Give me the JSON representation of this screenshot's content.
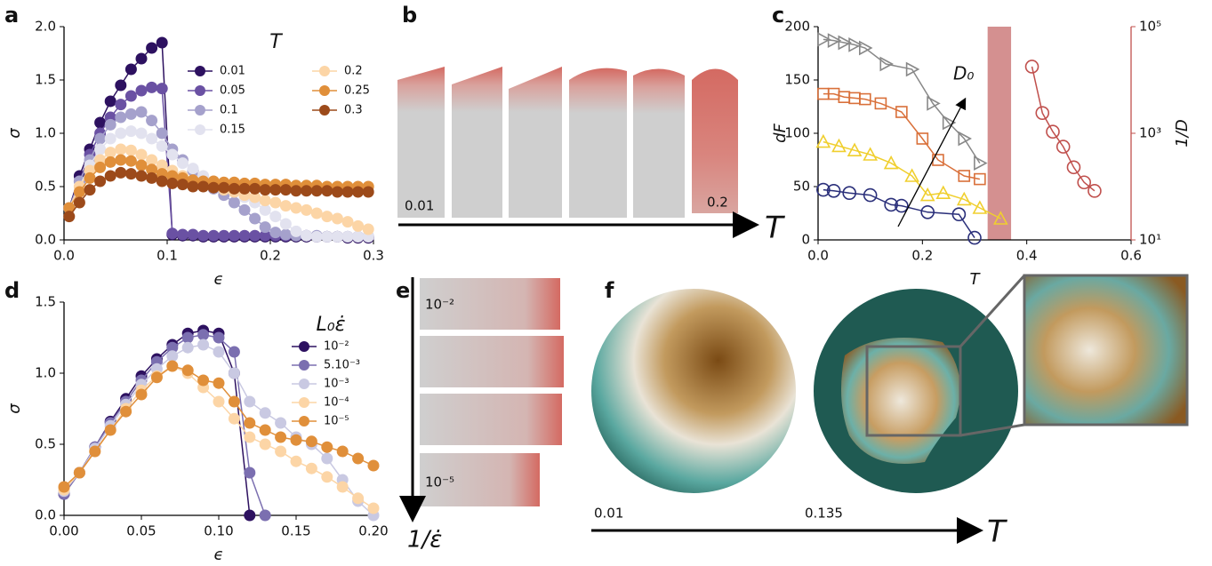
{
  "chart_data": [
    {
      "type": "line",
      "panel_label": "a",
      "xlabel": "ϵ",
      "ylabel": "σ",
      "legend_title": "T",
      "xlim": [
        0,
        0.3
      ],
      "ylim": [
        0,
        2
      ],
      "xticks": [
        {
          "value": 0,
          "label": "0.0"
        },
        {
          "value": 0.1,
          "label": "0.1"
        },
        {
          "value": 0.2,
          "label": "0.2"
        },
        {
          "value": 0.3,
          "label": "0.3"
        }
      ],
      "yticks": [
        {
          "value": 0,
          "label": "0.0"
        },
        {
          "value": 0.5,
          "label": "0.5"
        },
        {
          "value": 1,
          "label": "1.0"
        },
        {
          "value": 1.5,
          "label": "1.5"
        },
        {
          "value": 2,
          "label": "2.0"
        }
      ],
      "x": [
        0.005,
        0.015,
        0.025,
        0.035,
        0.045,
        0.055,
        0.065,
        0.075,
        0.085,
        0.095,
        0.105,
        0.115,
        0.125,
        0.135,
        0.145,
        0.155,
        0.165,
        0.175,
        0.185,
        0.195,
        0.205,
        0.215,
        0.225,
        0.235,
        0.245,
        0.255,
        0.265,
        0.275,
        0.285,
        0.295
      ],
      "series": [
        {
          "name": "0.01",
          "color": "#2d1160",
          "values": [
            0.3,
            0.6,
            0.85,
            1.1,
            1.3,
            1.45,
            1.6,
            1.7,
            1.8,
            1.85,
            0.05,
            0.04,
            0.04,
            0.03,
            0.03,
            0.03,
            0.03,
            0.03,
            0.03,
            0.03,
            0.03,
            0.03,
            0.03,
            0.03,
            0.03,
            0.03,
            0.03,
            0.02,
            0.02,
            0.02
          ]
        },
        {
          "name": "0.05",
          "color": "#6a51a3",
          "values": [
            0.3,
            0.55,
            0.8,
            1.0,
            1.15,
            1.27,
            1.35,
            1.4,
            1.43,
            1.42,
            0.06,
            0.05,
            0.05,
            0.04,
            0.04,
            0.04,
            0.04,
            0.04,
            0.04,
            0.04,
            0.04,
            0.04,
            0.04,
            0.04,
            0.03,
            0.03,
            0.03,
            0.03,
            0.03,
            0.03
          ]
        },
        {
          "name": "0.1",
          "color": "#a5a1cc",
          "values": [
            0.3,
            0.55,
            0.75,
            0.95,
            1.08,
            1.15,
            1.18,
            1.2,
            1.12,
            1.0,
            0.85,
            0.75,
            0.65,
            0.55,
            0.48,
            0.42,
            0.35,
            0.28,
            0.2,
            0.12,
            0.07,
            0.05,
            0.04,
            0.04,
            0.04,
            0.03,
            0.03,
            0.03,
            0.03,
            0.03
          ]
        },
        {
          "name": "0.15",
          "color": "#e2e2ef",
          "values": [
            0.3,
            0.5,
            0.7,
            0.85,
            0.95,
            1.0,
            1.02,
            1.0,
            0.95,
            0.88,
            0.8,
            0.72,
            0.67,
            0.6,
            0.55,
            0.5,
            0.45,
            0.4,
            0.35,
            0.28,
            0.22,
            0.15,
            0.08,
            0.04,
            0.03,
            0.03,
            0.03,
            0.03,
            0.03,
            0.03
          ]
        },
        {
          "name": "0.2",
          "color": "#fcd5a6",
          "values": [
            0.3,
            0.5,
            0.65,
            0.75,
            0.82,
            0.85,
            0.84,
            0.8,
            0.75,
            0.7,
            0.65,
            0.6,
            0.55,
            0.52,
            0.5,
            0.47,
            0.45,
            0.42,
            0.4,
            0.37,
            0.35,
            0.32,
            0.3,
            0.28,
            0.25,
            0.22,
            0.2,
            0.17,
            0.13,
            0.1
          ]
        },
        {
          "name": "0.25",
          "color": "#e08f3a",
          "values": [
            0.3,
            0.45,
            0.58,
            0.68,
            0.73,
            0.75,
            0.74,
            0.7,
            0.66,
            0.62,
            0.6,
            0.58,
            0.56,
            0.55,
            0.55,
            0.54,
            0.54,
            0.53,
            0.53,
            0.52,
            0.52,
            0.52,
            0.51,
            0.51,
            0.51,
            0.5,
            0.5,
            0.5,
            0.5,
            0.5
          ]
        },
        {
          "name": "0.3",
          "color": "#9c4a1a",
          "values": [
            0.22,
            0.35,
            0.47,
            0.55,
            0.6,
            0.63,
            0.62,
            0.6,
            0.58,
            0.55,
            0.53,
            0.52,
            0.5,
            0.5,
            0.49,
            0.49,
            0.48,
            0.48,
            0.48,
            0.47,
            0.47,
            0.47,
            0.46,
            0.46,
            0.46,
            0.46,
            0.45,
            0.45,
            0.45,
            0.45
          ]
        }
      ]
    },
    {
      "type": "line",
      "panel_label": "c",
      "xlabel": "T",
      "ylabel": "dF",
      "y2label": "1/D",
      "annotation": "D₀",
      "hollow": true,
      "y2scale": "log",
      "shaded_region": [
        0.325,
        0.37
      ],
      "shaded_color": "#d49090",
      "xlim": [
        0,
        0.6
      ],
      "ylim": [
        0,
        200
      ],
      "y2lim": [
        10,
        100000
      ],
      "xticks": [
        {
          "value": 0,
          "label": "0.0"
        },
        {
          "value": 0.2,
          "label": "0.2"
        },
        {
          "value": 0.4,
          "label": "0.4"
        },
        {
          "value": 0.6,
          "label": "0.6"
        }
      ],
      "yticks": [
        0,
        50,
        100,
        150,
        200
      ],
      "y2ticks": [
        {
          "value": 10,
          "label": "10¹"
        },
        {
          "value": 1000,
          "label": "10³"
        },
        {
          "value": 100000,
          "label": "10⁵"
        }
      ],
      "series": [
        {
          "marker": "triangle-right",
          "color": "#888888",
          "x": [
            0.01,
            0.03,
            0.05,
            0.07,
            0.09,
            0.13,
            0.18,
            0.22,
            0.25,
            0.28,
            0.31
          ],
          "values": [
            188,
            187,
            185,
            183,
            180,
            165,
            160,
            128,
            110,
            95,
            72
          ]
        },
        {
          "marker": "square",
          "color": "#d9703a",
          "x": [
            0.01,
            0.03,
            0.05,
            0.07,
            0.09,
            0.12,
            0.16,
            0.2,
            0.23,
            0.28,
            0.31
          ],
          "values": [
            137,
            137,
            134,
            133,
            132,
            128,
            120,
            95,
            75,
            60,
            57
          ]
        },
        {
          "marker": "triangle-up",
          "color": "#f0cf2e",
          "x": [
            0.01,
            0.04,
            0.07,
            0.1,
            0.14,
            0.18,
            0.21,
            0.24,
            0.28,
            0.31,
            0.35
          ],
          "values": [
            92,
            88,
            84,
            80,
            72,
            60,
            42,
            44,
            38,
            30,
            20
          ]
        },
        {
          "marker": "circle",
          "color": "#2a2f7a",
          "x": [
            0.01,
            0.03,
            0.06,
            0.1,
            0.14,
            0.16,
            0.21,
            0.27,
            0.3
          ],
          "values": [
            47,
            46,
            44,
            42,
            33,
            32,
            26,
            24,
            2
          ]
        },
        {
          "marker": "circle",
          "color": "#c0504d",
          "axis": "y2",
          "x": [
            0.41,
            0.43,
            0.45,
            0.47,
            0.49,
            0.51,
            0.53
          ],
          "values": [
            17800,
            2400,
            1070,
            560,
            230,
            120,
            83
          ]
        }
      ]
    },
    {
      "type": "line",
      "panel_label": "d",
      "xlabel": "ϵ",
      "ylabel": "σ",
      "legend_title": "L₀ε̇",
      "xlim": [
        0,
        0.2
      ],
      "ylim": [
        0,
        1.5
      ],
      "xticks": [
        {
          "value": 0,
          "label": "0.00"
        },
        {
          "value": 0.05,
          "label": "0.05"
        },
        {
          "value": 0.1,
          "label": "0.10"
        },
        {
          "value": 0.15,
          "label": "0.15"
        },
        {
          "value": 0.2,
          "label": "0.20"
        }
      ],
      "yticks": [
        {
          "value": 0,
          "label": "0.0"
        },
        {
          "value": 0.5,
          "label": "0.5"
        },
        {
          "value": 1,
          "label": "1.0"
        },
        {
          "value": 1.5,
          "label": "1.5"
        }
      ],
      "x": [
        0,
        0.01,
        0.02,
        0.03,
        0.04,
        0.05,
        0.06,
        0.07,
        0.08,
        0.09,
        0.1,
        0.11,
        0.12,
        0.13,
        0.14,
        0.15,
        0.16,
        0.17,
        0.18,
        0.19,
        0.2
      ],
      "series": [
        {
          "name": "10⁻²",
          "color": "#2d1160",
          "values": [
            0.15,
            0.3,
            0.48,
            0.66,
            0.82,
            0.98,
            1.1,
            1.2,
            1.28,
            1.3,
            1.28,
            1.0,
            0.0,
            null,
            null,
            null,
            null,
            null,
            null,
            null,
            null
          ]
        },
        {
          "name": "5.10⁻³",
          "color": "#7b6fb0",
          "values": [
            0.15,
            0.3,
            0.48,
            0.65,
            0.8,
            0.95,
            1.08,
            1.18,
            1.25,
            1.27,
            1.25,
            1.15,
            0.3,
            0.0,
            null,
            null,
            null,
            null,
            null,
            null,
            null
          ]
        },
        {
          "name": "10⁻³",
          "color": "#c9c9e2",
          "values": [
            0.17,
            0.3,
            0.47,
            0.63,
            0.78,
            0.92,
            1.03,
            1.12,
            1.18,
            1.2,
            1.15,
            1.0,
            0.8,
            0.72,
            0.65,
            0.55,
            0.5,
            0.4,
            0.25,
            0.1,
            0.0
          ]
        },
        {
          "name": "10⁻⁴",
          "color": "#fcd5a6",
          "values": [
            0.18,
            0.3,
            0.45,
            0.6,
            0.75,
            0.88,
            0.98,
            1.05,
            1.0,
            0.9,
            0.8,
            0.68,
            0.55,
            0.5,
            0.45,
            0.38,
            0.33,
            0.27,
            0.2,
            0.12,
            0.05
          ]
        },
        {
          "name": "10⁻⁵",
          "color": "#e08f3a",
          "values": [
            0.2,
            0.3,
            0.45,
            0.6,
            0.73,
            0.85,
            0.97,
            1.05,
            1.02,
            0.95,
            0.93,
            0.8,
            0.65,
            0.6,
            0.55,
            0.53,
            0.52,
            0.48,
            0.45,
            0.4,
            0.35
          ]
        }
      ]
    }
  ],
  "panels": {
    "b": {
      "label": "b",
      "low": "0.01",
      "high": "0.2",
      "axis": "T"
    },
    "e": {
      "label": "e",
      "top": "10⁻²",
      "bottom": "10⁻⁵",
      "axis": "1/ε̇"
    },
    "f": {
      "label": "f",
      "left": "0.01",
      "right": "0.135",
      "axis": "T"
    }
  }
}
